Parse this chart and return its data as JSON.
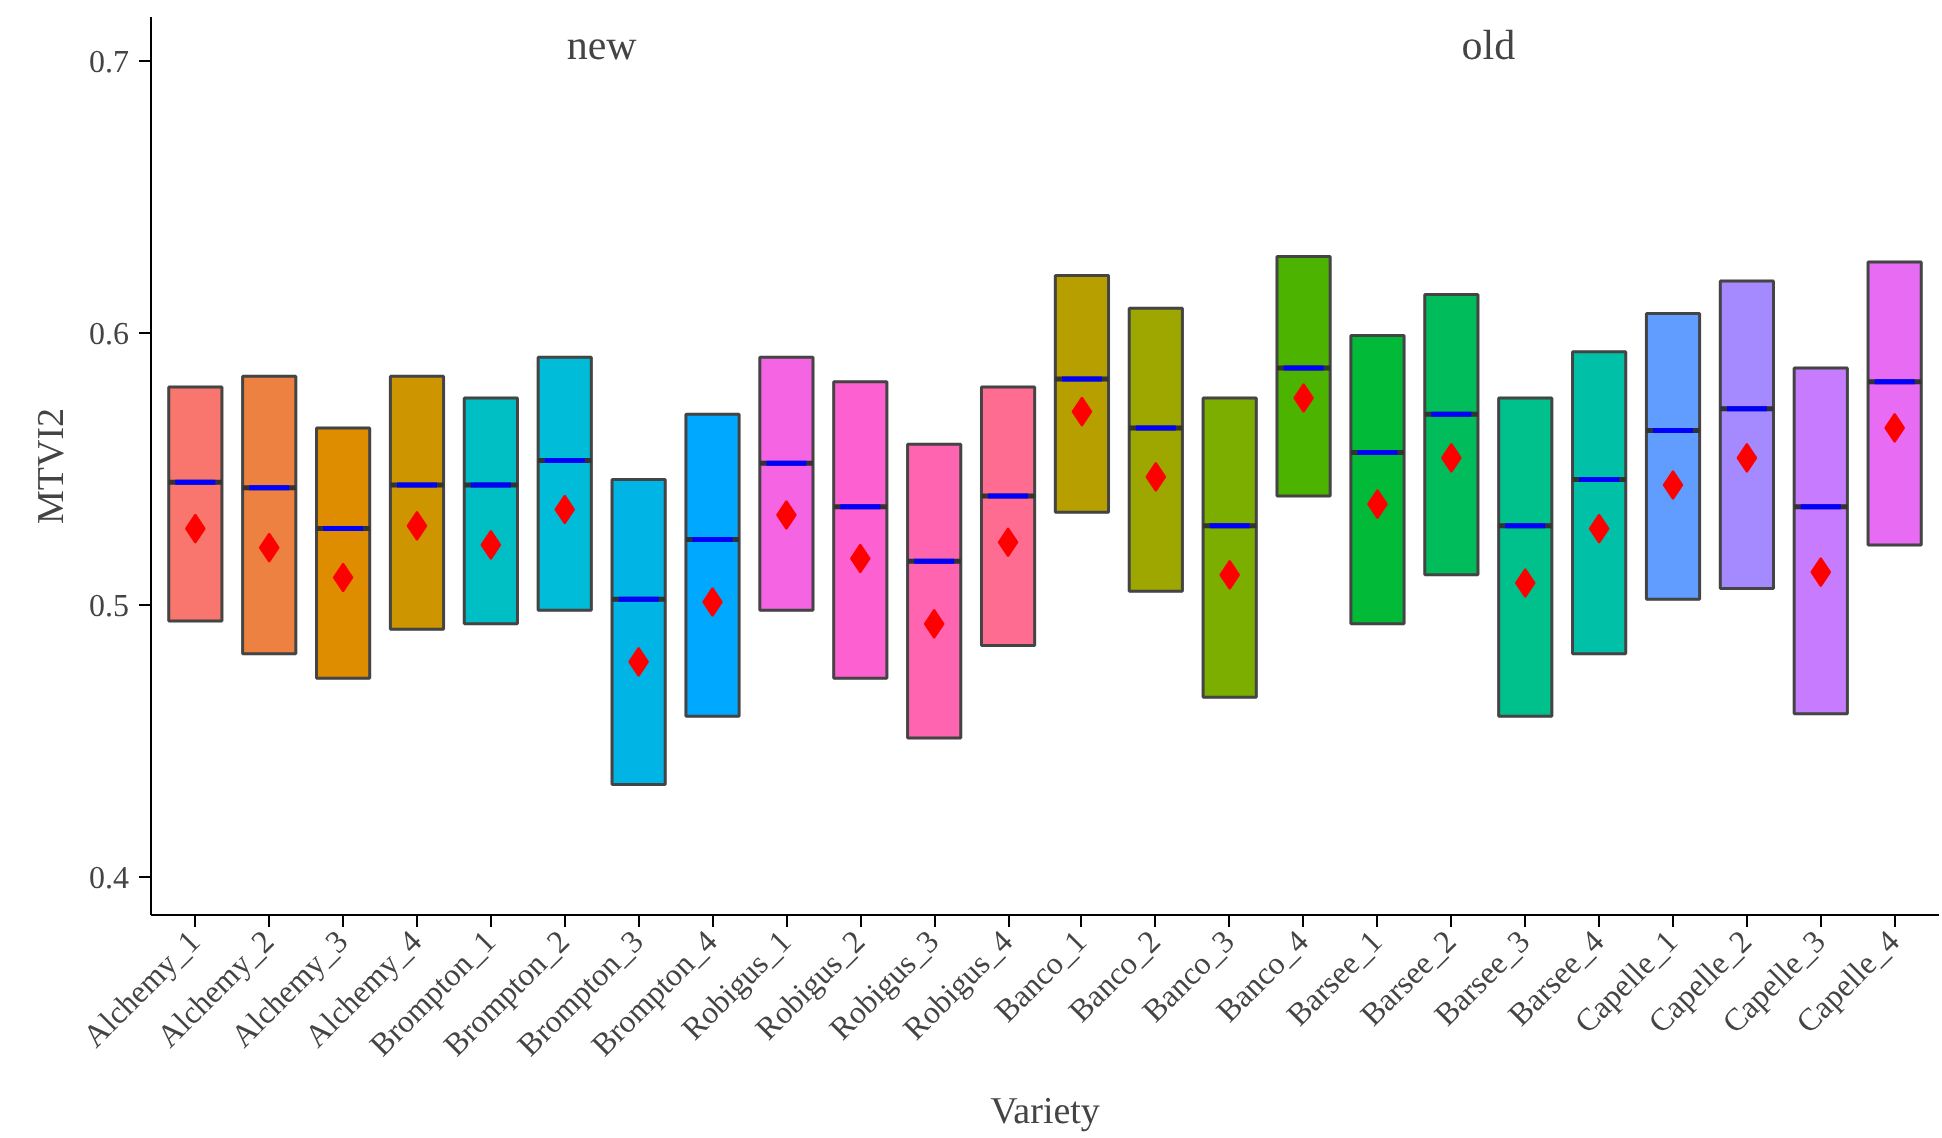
{
  "chart_data": {
    "type": "box",
    "xlabel": "Variety",
    "ylabel": "MTVI2",
    "annotations": [
      "new",
      "old"
    ],
    "categories": [
      "Alchemy_1",
      "Alchemy_2",
      "Alchemy_3",
      "Alchemy_4",
      "Brompton_1",
      "Brompton_2",
      "Brompton_3",
      "Brompton_4",
      "Robigus_1",
      "Robigus_2",
      "Robigus_3",
      "Robigus_4",
      "Banco_1",
      "Banco_2",
      "Banco_3",
      "Banco_4",
      "Barsee_1",
      "Barsee_2",
      "Barsee_3",
      "Barsee_4",
      "Capelle_1",
      "Capelle_2",
      "Capelle_3",
      "Capelle_4"
    ],
    "colors": [
      "#f8766d",
      "#ec8141",
      "#de8c00",
      "#cd9600",
      "#00bfc4",
      "#00bcd8",
      "#00b5e6",
      "#00a9ff",
      "#f564e3",
      "#fd61d1",
      "#ff64b0",
      "#ff6c91",
      "#b79f00",
      "#9da700",
      "#7cae00",
      "#4cb400",
      "#00ba38",
      "#00bc5a",
      "#00c08b",
      "#00c0a8",
      "#619cff",
      "#a58aff",
      "#c77cff",
      "#e76bf3"
    ],
    "boxes": [
      {
        "low": 0.494,
        "q1": 0.494,
        "median": 0.545,
        "q3": 0.58,
        "high": 0.58,
        "mean": 0.528
      },
      {
        "low": 0.482,
        "q1": 0.482,
        "median": 0.543,
        "q3": 0.584,
        "high": 0.584,
        "mean": 0.521
      },
      {
        "low": 0.473,
        "q1": 0.473,
        "median": 0.528,
        "q3": 0.565,
        "high": 0.565,
        "mean": 0.51
      },
      {
        "low": 0.491,
        "q1": 0.491,
        "median": 0.544,
        "q3": 0.584,
        "high": 0.584,
        "mean": 0.529
      },
      {
        "low": 0.493,
        "q1": 0.493,
        "median": 0.544,
        "q3": 0.576,
        "high": 0.576,
        "mean": 0.522
      },
      {
        "low": 0.498,
        "q1": 0.498,
        "median": 0.553,
        "q3": 0.591,
        "high": 0.591,
        "mean": 0.535
      },
      {
        "low": 0.434,
        "q1": 0.434,
        "median": 0.502,
        "q3": 0.546,
        "high": 0.546,
        "mean": 0.479
      },
      {
        "low": 0.459,
        "q1": 0.459,
        "median": 0.524,
        "q3": 0.57,
        "high": 0.57,
        "mean": 0.501
      },
      {
        "low": 0.498,
        "q1": 0.498,
        "median": 0.552,
        "q3": 0.591,
        "high": 0.591,
        "mean": 0.533
      },
      {
        "low": 0.473,
        "q1": 0.473,
        "median": 0.536,
        "q3": 0.582,
        "high": 0.582,
        "mean": 0.517
      },
      {
        "low": 0.451,
        "q1": 0.451,
        "median": 0.516,
        "q3": 0.559,
        "high": 0.559,
        "mean": 0.493
      },
      {
        "low": 0.485,
        "q1": 0.485,
        "median": 0.54,
        "q3": 0.58,
        "high": 0.58,
        "mean": 0.523
      },
      {
        "low": 0.534,
        "q1": 0.534,
        "median": 0.583,
        "q3": 0.621,
        "high": 0.621,
        "mean": 0.571
      },
      {
        "low": 0.505,
        "q1": 0.505,
        "median": 0.565,
        "q3": 0.609,
        "high": 0.609,
        "mean": 0.547
      },
      {
        "low": 0.466,
        "q1": 0.466,
        "median": 0.529,
        "q3": 0.576,
        "high": 0.576,
        "mean": 0.511
      },
      {
        "low": 0.54,
        "q1": 0.54,
        "median": 0.587,
        "q3": 0.628,
        "high": 0.628,
        "mean": 0.576
      },
      {
        "low": 0.493,
        "q1": 0.493,
        "median": 0.556,
        "q3": 0.599,
        "high": 0.599,
        "mean": 0.537
      },
      {
        "low": 0.511,
        "q1": 0.511,
        "median": 0.57,
        "q3": 0.614,
        "high": 0.614,
        "mean": 0.554
      },
      {
        "low": 0.459,
        "q1": 0.459,
        "median": 0.529,
        "q3": 0.576,
        "high": 0.576,
        "mean": 0.508
      },
      {
        "low": 0.482,
        "q1": 0.482,
        "median": 0.546,
        "q3": 0.593,
        "high": 0.593,
        "mean": 0.528
      },
      {
        "low": 0.502,
        "q1": 0.502,
        "median": 0.564,
        "q3": 0.607,
        "high": 0.607,
        "mean": 0.544
      },
      {
        "low": 0.506,
        "q1": 0.506,
        "median": 0.572,
        "q3": 0.619,
        "high": 0.619,
        "mean": 0.554
      },
      {
        "low": 0.46,
        "q1": 0.46,
        "median": 0.536,
        "q3": 0.587,
        "high": 0.587,
        "mean": 0.512
      },
      {
        "low": 0.522,
        "q1": 0.522,
        "median": 0.582,
        "q3": 0.626,
        "high": 0.626,
        "mean": 0.565
      }
    ],
    "ylim": [
      0.386,
      0.716
    ],
    "yticks": [
      0.4,
      0.5,
      0.6,
      0.7
    ],
    "grid": false
  }
}
